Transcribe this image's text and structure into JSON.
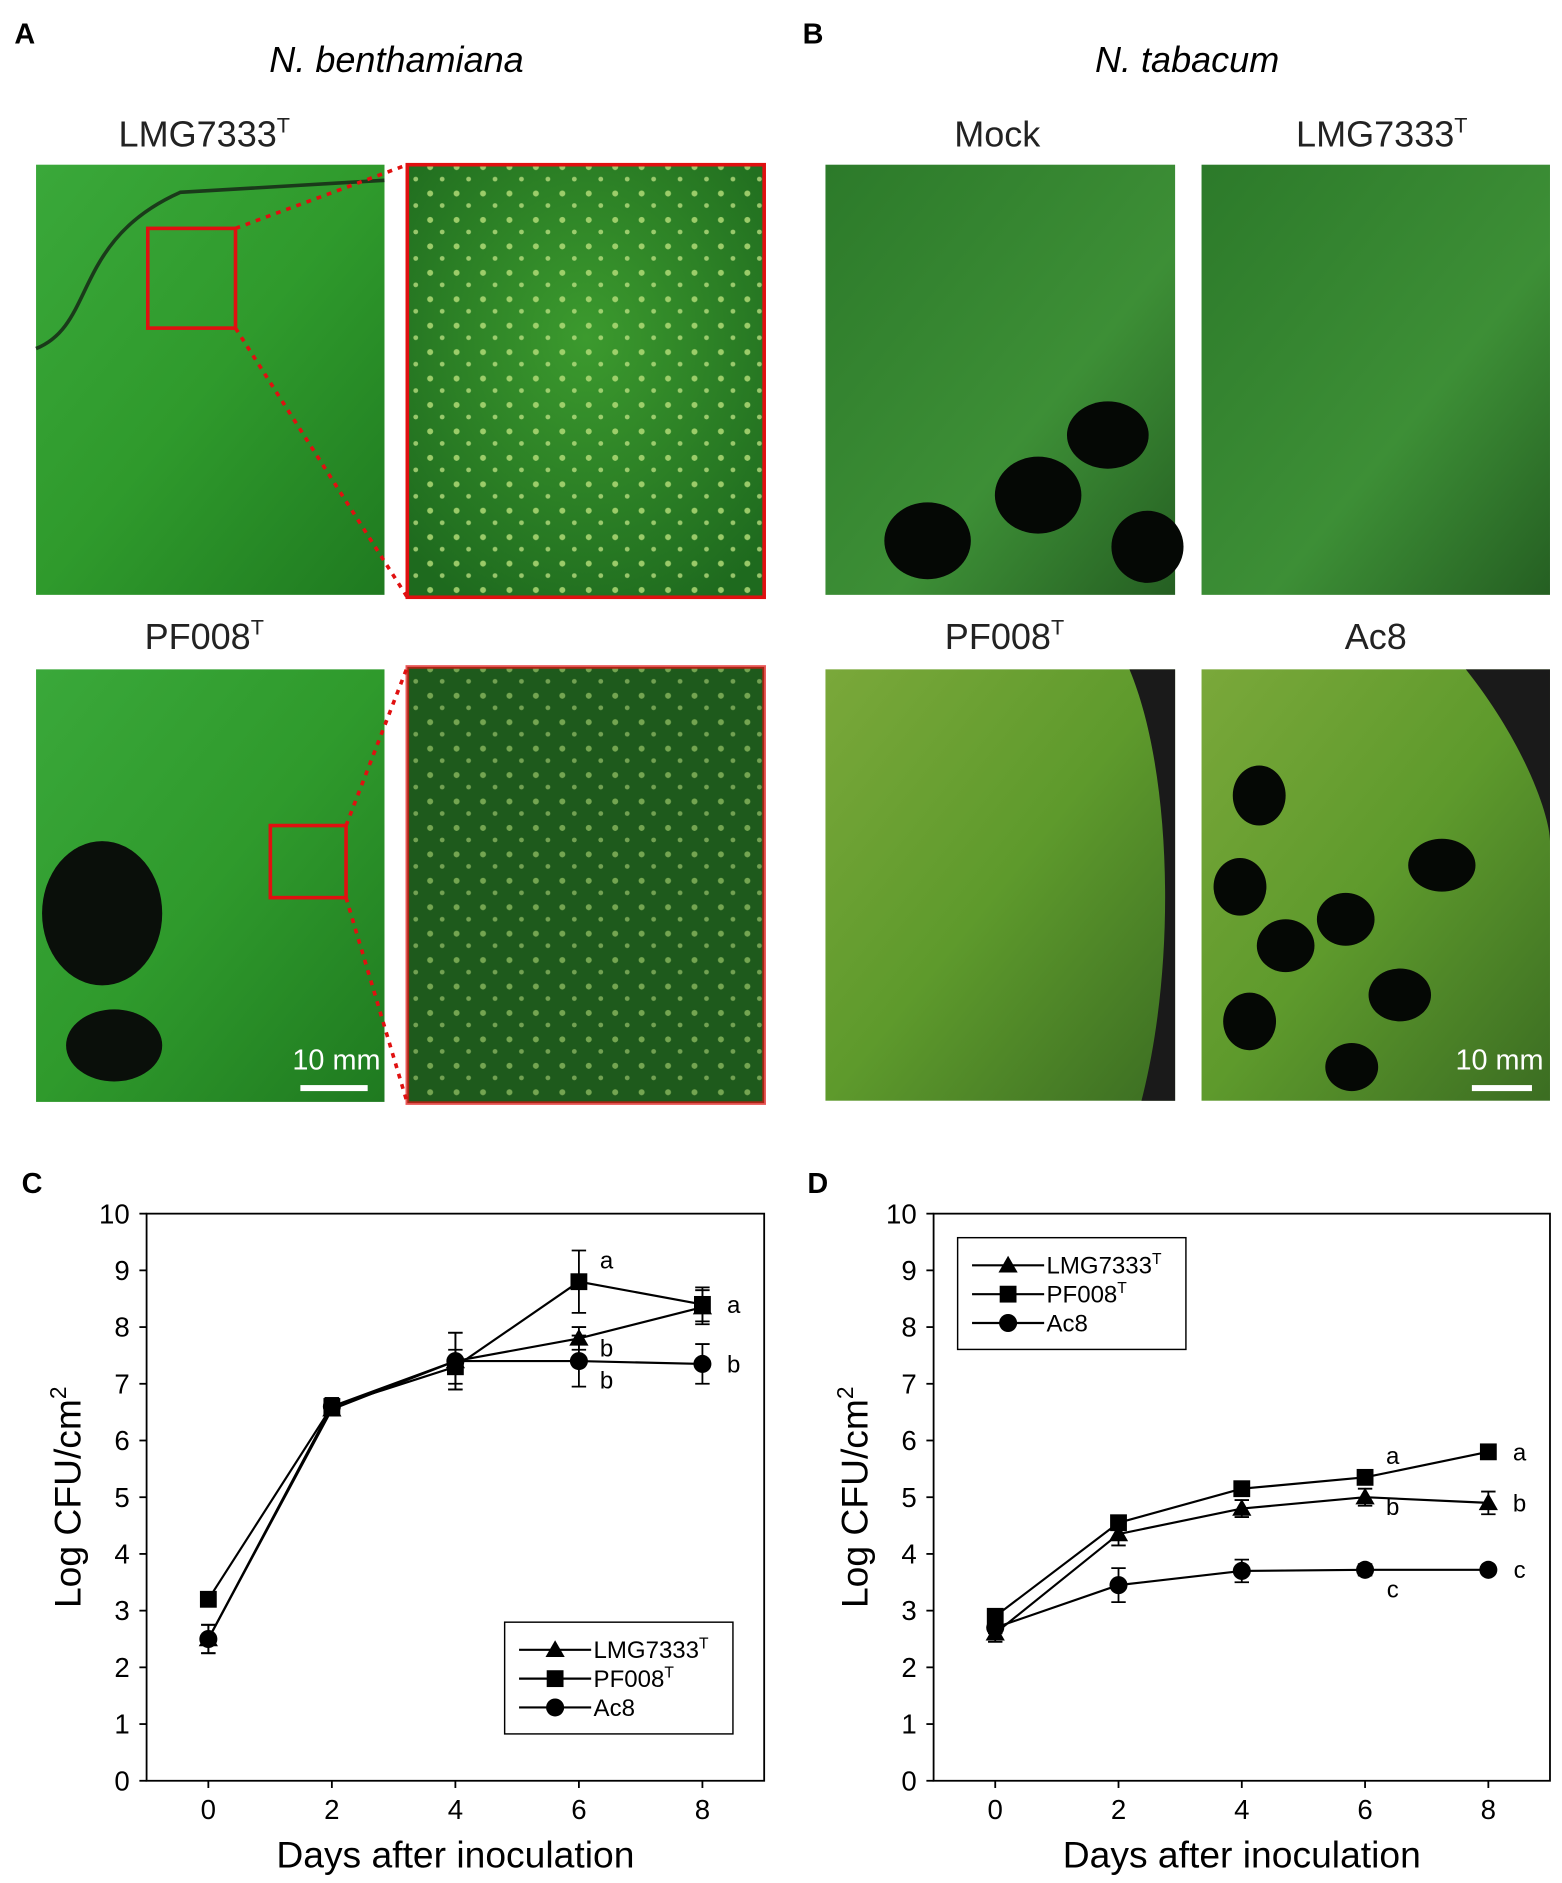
{
  "panels": {
    "A": {
      "label": "A",
      "species": "N. benthamiana",
      "photos": [
        {
          "text": "LMG7333",
          "sup": "T"
        },
        {
          "text": "PF008",
          "sup": "T"
        }
      ],
      "scale_bar": "10 mm"
    },
    "B": {
      "label": "B",
      "species": "N. tabacum",
      "photos": [
        {
          "text": "Mock"
        },
        {
          "text": "LMG7333",
          "sup": "T"
        },
        {
          "text": "PF008",
          "sup": "T"
        },
        {
          "text": "Ac8"
        }
      ],
      "scale_bar": "10 mm"
    }
  },
  "chart_data": [
    {
      "type": "line",
      "panel": "C",
      "x_label": "Days after inoculation",
      "y_label": "Log CFU/cm",
      "y_label_sup": "2",
      "x": [
        0,
        2,
        4,
        6,
        8
      ],
      "xlim": [
        -1,
        9
      ],
      "xticks": [
        0,
        2,
        4,
        6,
        8
      ],
      "ylim": [
        0,
        10
      ],
      "yticks": [
        0,
        1,
        2,
        3,
        4,
        5,
        6,
        7,
        8,
        9,
        10
      ],
      "legend": "lower right",
      "series": [
        {
          "name": "LMG7333",
          "name_sup": "T",
          "marker": "triangle",
          "color": "#000000",
          "values": [
            2.5,
            6.55,
            7.4,
            7.8,
            8.35
          ],
          "errors": [
            0.25,
            0.1,
            0.5,
            0.2,
            0.3
          ],
          "letters": [
            null,
            null,
            null,
            "b",
            null
          ]
        },
        {
          "name": "PF008",
          "name_sup": "T",
          "marker": "square",
          "color": "#000000",
          "values": [
            3.2,
            6.6,
            7.3,
            8.8,
            8.4
          ],
          "errors": [
            0.1,
            0.15,
            0.3,
            0.55,
            0.3
          ],
          "letters": [
            null,
            null,
            null,
            "a",
            "a"
          ]
        },
        {
          "name": "Ac8",
          "marker": "circle",
          "color": "#000000",
          "values": [
            2.5,
            6.6,
            7.4,
            7.4,
            7.35
          ],
          "errors": [
            0.25,
            0.15,
            0.5,
            0.45,
            0.35
          ],
          "letters": [
            null,
            null,
            null,
            "b",
            "b"
          ]
        }
      ]
    },
    {
      "type": "line",
      "panel": "D",
      "x_label": "Days after inoculation",
      "y_label": "Log CFU/cm",
      "y_label_sup": "2",
      "x": [
        0,
        2,
        4,
        6,
        8
      ],
      "xlim": [
        -1,
        9
      ],
      "xticks": [
        0,
        2,
        4,
        6,
        8
      ],
      "ylim": [
        0,
        10
      ],
      "yticks": [
        0,
        1,
        2,
        3,
        4,
        5,
        6,
        7,
        8,
        9,
        10
      ],
      "legend": "upper left",
      "series": [
        {
          "name": "LMG7333",
          "name_sup": "T",
          "marker": "triangle",
          "color": "#000000",
          "values": [
            2.6,
            4.35,
            4.8,
            5.0,
            4.9
          ],
          "errors": [
            0.15,
            0.2,
            0.15,
            0.15,
            0.2
          ],
          "letters": [
            null,
            null,
            null,
            "b",
            "b"
          ]
        },
        {
          "name": "PF008",
          "name_sup": "T",
          "marker": "square",
          "color": "#000000",
          "values": [
            2.9,
            4.55,
            5.15,
            5.35,
            5.8
          ],
          "errors": [
            0.1,
            0.1,
            0.1,
            0.1,
            0.05
          ],
          "letters": [
            null,
            null,
            null,
            "a",
            "a"
          ]
        },
        {
          "name": "Ac8",
          "marker": "circle",
          "color": "#000000",
          "values": [
            2.7,
            3.45,
            3.7,
            3.72,
            3.72
          ],
          "errors": [
            0.1,
            0.3,
            0.2,
            0.1,
            0.05
          ],
          "letters": [
            null,
            null,
            null,
            "c",
            "c"
          ]
        }
      ]
    }
  ]
}
